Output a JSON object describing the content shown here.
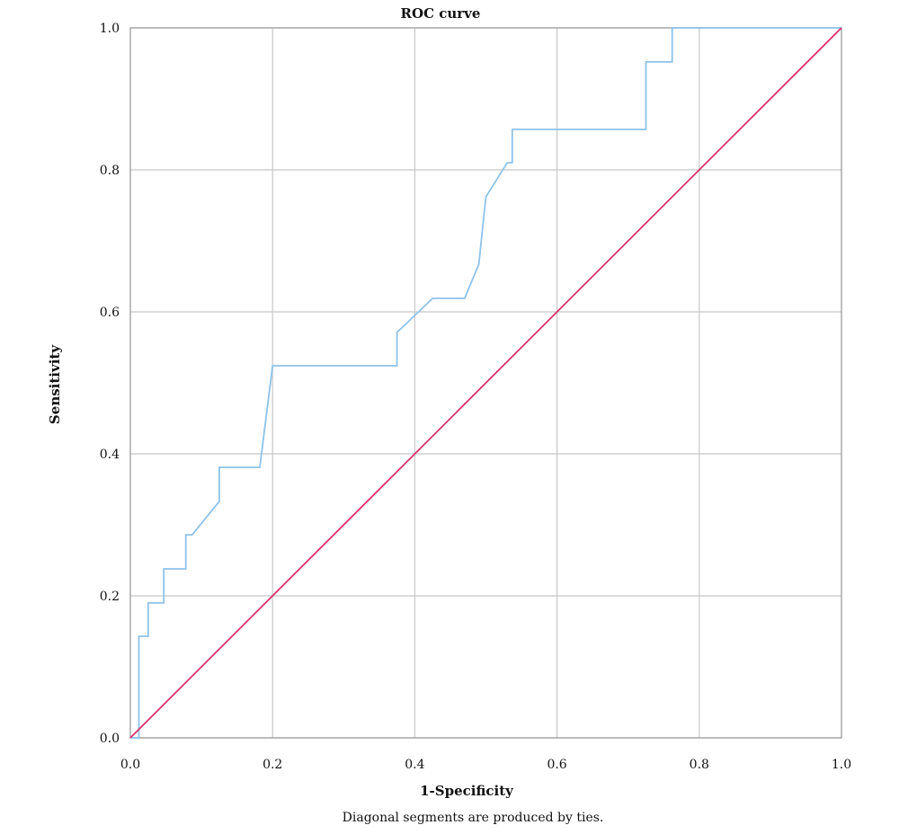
{
  "chart_data": {
    "type": "line",
    "title": "ROC curve",
    "xlabel": "1-Specificity",
    "ylabel": "Sensitivity",
    "footnote": "Diagonal segments are produced by ties.",
    "xlim": [
      0,
      1
    ],
    "ylim": [
      0,
      1
    ],
    "x_ticks": [
      "0.0",
      "0.2",
      "0.4",
      "0.6",
      "0.8",
      "1.0"
    ],
    "y_ticks": [
      "0.0",
      "0.2",
      "0.4",
      "0.6",
      "0.8",
      "1.0"
    ],
    "grid": true,
    "series": [
      {
        "color": "#8ec3ea",
        "x": [
          0.0,
          0.012,
          0.012,
          0.025,
          0.025,
          0.047,
          0.047,
          0.078,
          0.078,
          0.087,
          0.125,
          0.125,
          0.182,
          0.2,
          0.2,
          0.375,
          0.375,
          0.425,
          0.47,
          0.49,
          0.5,
          0.53,
          0.537,
          0.537,
          0.725,
          0.725,
          0.762,
          0.762,
          1.0
        ],
        "y": [
          0.0,
          0.0,
          0.143,
          0.143,
          0.19,
          0.19,
          0.238,
          0.238,
          0.286,
          0.286,
          0.333,
          0.381,
          0.381,
          0.524,
          0.524,
          0.524,
          0.571,
          0.619,
          0.619,
          0.667,
          0.762,
          0.81,
          0.81,
          0.857,
          0.857,
          0.952,
          0.952,
          1.0,
          1.0
        ]
      },
      {
        "color": "#d6336c",
        "x": [
          0.0,
          1.0
        ],
        "y": [
          0.0,
          1.0
        ]
      }
    ]
  }
}
